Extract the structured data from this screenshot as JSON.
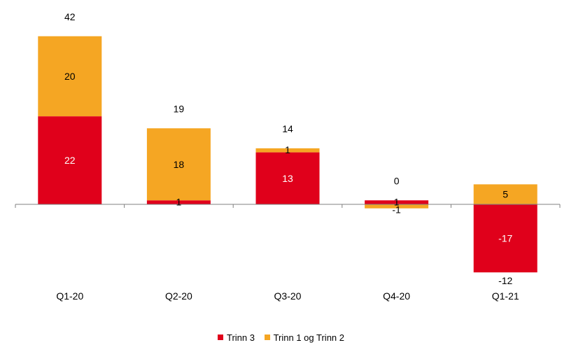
{
  "chart_data": {
    "type": "bar",
    "stacked": true,
    "categories": [
      "Q1-20",
      "Q2-20",
      "Q3-20",
      "Q4-20",
      "Q1-21"
    ],
    "series": [
      {
        "name": "Trinn 3",
        "values": [
          22,
          1,
          13,
          1,
          -17
        ],
        "labels": [
          "22",
          "1",
          "13",
          "1",
          "-17"
        ],
        "color": "#e0001b"
      },
      {
        "name": "Trinn 1 og Trinn 2",
        "values": [
          20,
          18,
          1,
          -1,
          5
        ],
        "labels": [
          "20",
          "18",
          "1",
          "-1",
          "5"
        ],
        "color": "#f5a623"
      }
    ],
    "totals": [
      "42",
      "19",
      "14",
      "0",
      "-12"
    ],
    "ylim": [
      -18,
      44
    ],
    "grid": false,
    "legend": {
      "position": "bottom"
    },
    "colors": {
      "inside_label_light": "#ffffff",
      "inside_label_dark": "#000000",
      "axis": "#808080"
    }
  }
}
